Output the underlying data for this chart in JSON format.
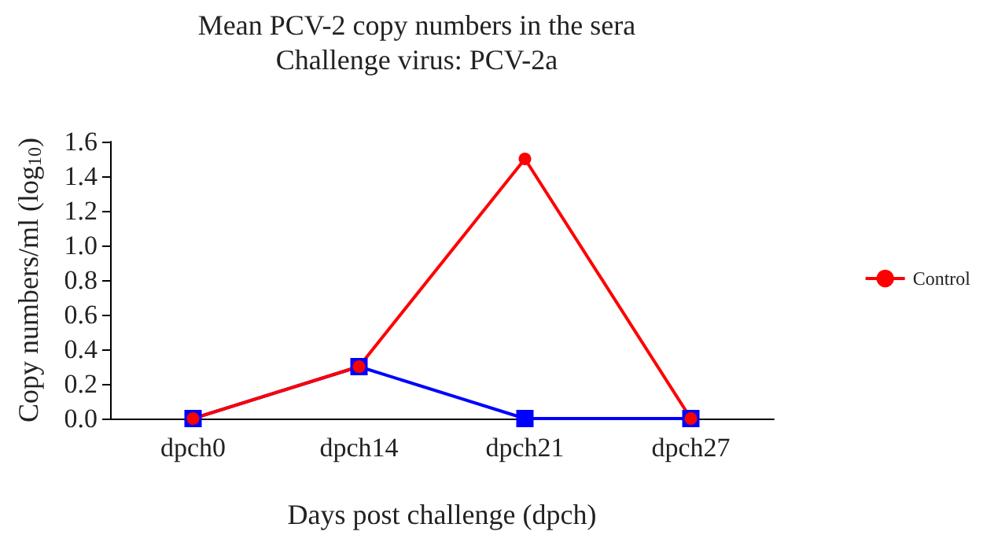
{
  "chart_data": {
    "type": "line",
    "title": "Mean PCV-2 copy numbers in the sera",
    "subtitle": "Challenge virus: PCV-2a",
    "xlabel": "Days post challenge (dpch)",
    "ylabel": "Copy numbers/ml (log$_{10}$)",
    "categories": [
      "dpch0",
      "dpch14",
      "dpch21",
      "dpch27"
    ],
    "series": [
      {
        "color": "#0000ff",
        "marker": "square",
        "values": [
          0,
          0.3,
          0,
          0
        ]
      },
      {
        "name": "Control",
        "color": "#ff0000",
        "marker": "circle",
        "values": [
          0,
          0.3,
          1.5,
          0
        ]
      }
    ],
    "ylim": [
      0,
      1.6
    ],
    "yticks": [
      {
        "value": 0,
        "label": "0.0"
      },
      {
        "value": 0.2,
        "label": "0.2"
      },
      {
        "value": 0.4,
        "label": "0.4"
      },
      {
        "value": 0.6,
        "label": "0.6"
      },
      {
        "value": 0.8,
        "label": "0.8"
      },
      {
        "value": 1,
        "label": "1.0"
      },
      {
        "value": 1.2,
        "label": "1.2"
      },
      {
        "value": 1.4,
        "label": "1.4"
      },
      {
        "value": 1.6,
        "label": "1.6"
      }
    ],
    "grid": false,
    "legend": "right",
    "line_style": "solid"
  }
}
